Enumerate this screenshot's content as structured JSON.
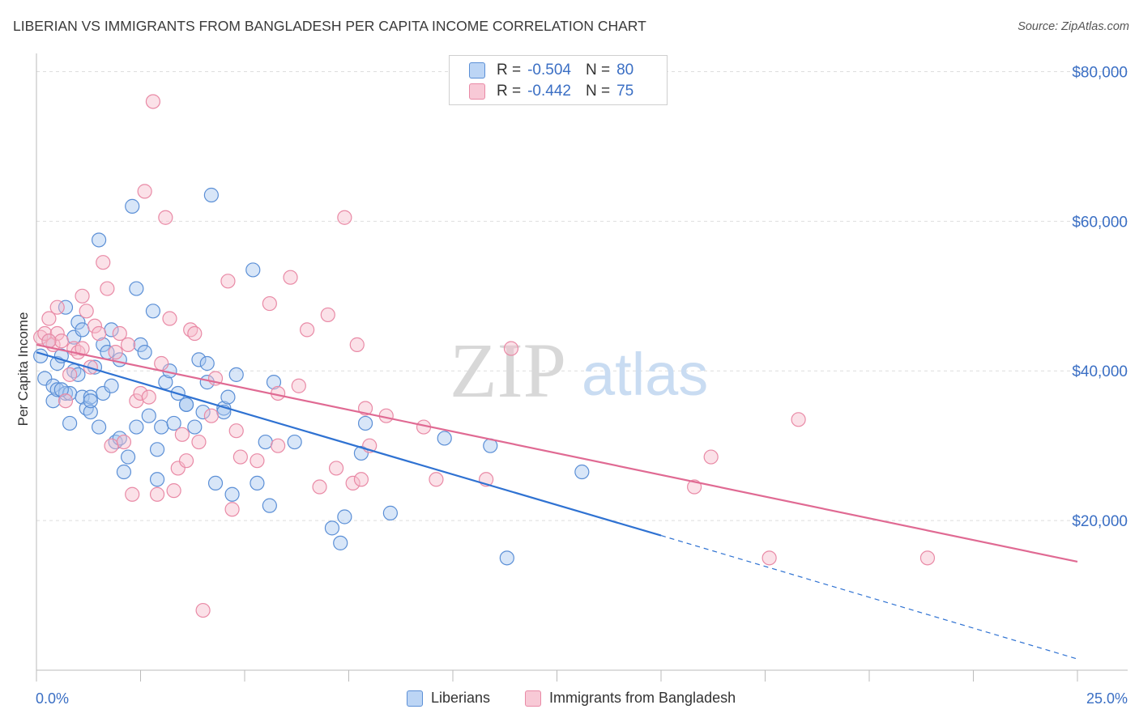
{
  "title": "LIBERIAN VS IMMIGRANTS FROM BANGLADESH PER CAPITA INCOME CORRELATION CHART",
  "source": "Source: ZipAtlas.com",
  "watermark": {
    "zip": "ZIP",
    "atlas": "atlas"
  },
  "legend_stats": [
    {
      "r_label": "R = ",
      "r_value": "-0.504",
      "n_label": "N = ",
      "n_value": "80",
      "color": "#a9c8f0",
      "border": "#5b8fd6"
    },
    {
      "r_label": "R = ",
      "r_value": "-0.442",
      "n_label": "N = ",
      "n_value": "75",
      "color": "#f7bccd",
      "border": "#e98aa6"
    }
  ],
  "legend_bottom": [
    {
      "label": "Liberians",
      "color": "#bcd5f5",
      "border": "#5b8fd6"
    },
    {
      "label": "Immigrants from Bangladesh",
      "color": "#f8c9d6",
      "border": "#e98aa6"
    }
  ],
  "chart_data": {
    "type": "scatter",
    "xlabel": "",
    "ylabel": "Per Capita Income",
    "x_tick_labels": [
      "0.0%",
      "25.0%"
    ],
    "y_tick_labels": [
      "$20,000",
      "$40,000",
      "$60,000",
      "$80,000"
    ],
    "y_ticks": [
      20000,
      40000,
      60000,
      80000
    ],
    "xlim": [
      0,
      25
    ],
    "ylim": [
      0,
      82000
    ],
    "grid": true,
    "series": [
      {
        "name": "Liberians",
        "color": "#5b8fd6",
        "fill": "rgba(169,200,240,0.45)",
        "trend": {
          "x0": 0,
          "y0": 42500,
          "x1": 15,
          "y1": 18000,
          "dash_to_x": 25,
          "dash_to_y": 1500,
          "color": "#2f72d2"
        },
        "points": [
          [
            0.1,
            42000
          ],
          [
            0.2,
            39000
          ],
          [
            0.3,
            44000
          ],
          [
            0.4,
            36000
          ],
          [
            0.4,
            38000
          ],
          [
            0.5,
            41000
          ],
          [
            0.5,
            37500
          ],
          [
            0.6,
            42000
          ],
          [
            0.7,
            48500
          ],
          [
            0.7,
            37000
          ],
          [
            0.8,
            33000
          ],
          [
            0.8,
            37000
          ],
          [
            0.9,
            44500
          ],
          [
            0.9,
            40000
          ],
          [
            1.0,
            46500
          ],
          [
            1.0,
            39500
          ],
          [
            1.1,
            45500
          ],
          [
            1.1,
            36500
          ],
          [
            1.2,
            35000
          ],
          [
            1.3,
            34500
          ],
          [
            1.3,
            36500
          ],
          [
            1.4,
            40500
          ],
          [
            1.5,
            57500
          ],
          [
            1.5,
            32500
          ],
          [
            1.6,
            43500
          ],
          [
            1.6,
            37000
          ],
          [
            1.7,
            42500
          ],
          [
            1.8,
            38000
          ],
          [
            1.8,
            45500
          ],
          [
            1.9,
            30500
          ],
          [
            2.0,
            41500
          ],
          [
            2.1,
            26500
          ],
          [
            2.2,
            28500
          ],
          [
            2.3,
            62000
          ],
          [
            2.4,
            32500
          ],
          [
            2.4,
            51000
          ],
          [
            2.5,
            43500
          ],
          [
            2.6,
            42500
          ],
          [
            2.7,
            34000
          ],
          [
            2.8,
            48000
          ],
          [
            2.9,
            25500
          ],
          [
            3.0,
            32500
          ],
          [
            3.1,
            38500
          ],
          [
            3.2,
            40000
          ],
          [
            3.3,
            33000
          ],
          [
            3.4,
            37000
          ],
          [
            3.6,
            35500
          ],
          [
            3.8,
            32500
          ],
          [
            3.9,
            41500
          ],
          [
            4.0,
            34500
          ],
          [
            4.1,
            38500
          ],
          [
            4.1,
            41000
          ],
          [
            4.2,
            63500
          ],
          [
            4.3,
            25000
          ],
          [
            4.5,
            35000
          ],
          [
            4.6,
            36500
          ],
          [
            4.7,
            23500
          ],
          [
            4.8,
            39500
          ],
          [
            5.2,
            53500
          ],
          [
            5.3,
            25000
          ],
          [
            5.5,
            30500
          ],
          [
            5.6,
            22000
          ],
          [
            5.7,
            38500
          ],
          [
            6.2,
            30500
          ],
          [
            7.1,
            19000
          ],
          [
            7.3,
            17000
          ],
          [
            7.4,
            20500
          ],
          [
            7.8,
            29000
          ],
          [
            7.9,
            33000
          ],
          [
            8.5,
            21000
          ],
          [
            9.8,
            31000
          ],
          [
            10.9,
            30000
          ],
          [
            13.1,
            26500
          ],
          [
            11.3,
            15000
          ],
          [
            3.6,
            35500
          ],
          [
            2.9,
            29500
          ],
          [
            1.3,
            36000
          ],
          [
            0.6,
            37500
          ],
          [
            4.5,
            34500
          ],
          [
            2.0,
            31000
          ]
        ]
      },
      {
        "name": "Immigrants from Bangladesh",
        "color": "#e98aa6",
        "fill": "rgba(247,188,205,0.45)",
        "trend": {
          "x0": 0,
          "y0": 43500,
          "x1": 25,
          "y1": 14500,
          "color": "#e06a93"
        },
        "points": [
          [
            0.1,
            44500
          ],
          [
            0.2,
            45000
          ],
          [
            0.3,
            47000
          ],
          [
            0.4,
            43500
          ],
          [
            0.5,
            48500
          ],
          [
            0.5,
            45000
          ],
          [
            0.6,
            44000
          ],
          [
            0.7,
            36000
          ],
          [
            0.8,
            39500
          ],
          [
            0.9,
            43000
          ],
          [
            1.0,
            42500
          ],
          [
            1.1,
            43000
          ],
          [
            1.1,
            50000
          ],
          [
            1.2,
            48000
          ],
          [
            1.3,
            40500
          ],
          [
            1.4,
            46000
          ],
          [
            1.5,
            45000
          ],
          [
            1.6,
            54500
          ],
          [
            1.7,
            51000
          ],
          [
            1.8,
            30000
          ],
          [
            1.9,
            42500
          ],
          [
            2.0,
            45000
          ],
          [
            2.1,
            30500
          ],
          [
            2.2,
            43500
          ],
          [
            2.3,
            23500
          ],
          [
            2.4,
            36000
          ],
          [
            2.5,
            37000
          ],
          [
            2.6,
            64000
          ],
          [
            2.7,
            36500
          ],
          [
            2.8,
            76000
          ],
          [
            2.9,
            23500
          ],
          [
            3.0,
            41000
          ],
          [
            3.1,
            60500
          ],
          [
            3.2,
            47000
          ],
          [
            3.3,
            24000
          ],
          [
            3.4,
            27000
          ],
          [
            3.5,
            31500
          ],
          [
            3.6,
            28000
          ],
          [
            3.7,
            45500
          ],
          [
            3.8,
            45000
          ],
          [
            3.9,
            30500
          ],
          [
            4.0,
            8000
          ],
          [
            4.2,
            34000
          ],
          [
            4.3,
            39000
          ],
          [
            4.6,
            52000
          ],
          [
            4.7,
            21500
          ],
          [
            4.8,
            32000
          ],
          [
            4.9,
            28500
          ],
          [
            5.3,
            28000
          ],
          [
            5.6,
            49000
          ],
          [
            5.8,
            37000
          ],
          [
            5.8,
            30000
          ],
          [
            6.1,
            52500
          ],
          [
            6.3,
            38000
          ],
          [
            6.5,
            45500
          ],
          [
            6.8,
            24500
          ],
          [
            7.0,
            47500
          ],
          [
            7.2,
            27000
          ],
          [
            7.4,
            60500
          ],
          [
            7.6,
            25000
          ],
          [
            7.7,
            43500
          ],
          [
            7.8,
            25500
          ],
          [
            7.9,
            35000
          ],
          [
            8.0,
            30000
          ],
          [
            8.4,
            34000
          ],
          [
            9.3,
            32500
          ],
          [
            9.6,
            25500
          ],
          [
            10.8,
            25500
          ],
          [
            11.4,
            43000
          ],
          [
            15.8,
            24500
          ],
          [
            16.2,
            28500
          ],
          [
            17.6,
            15000
          ],
          [
            18.3,
            33500
          ],
          [
            21.4,
            15000
          ],
          [
            0.3,
            44000
          ]
        ]
      }
    ]
  }
}
